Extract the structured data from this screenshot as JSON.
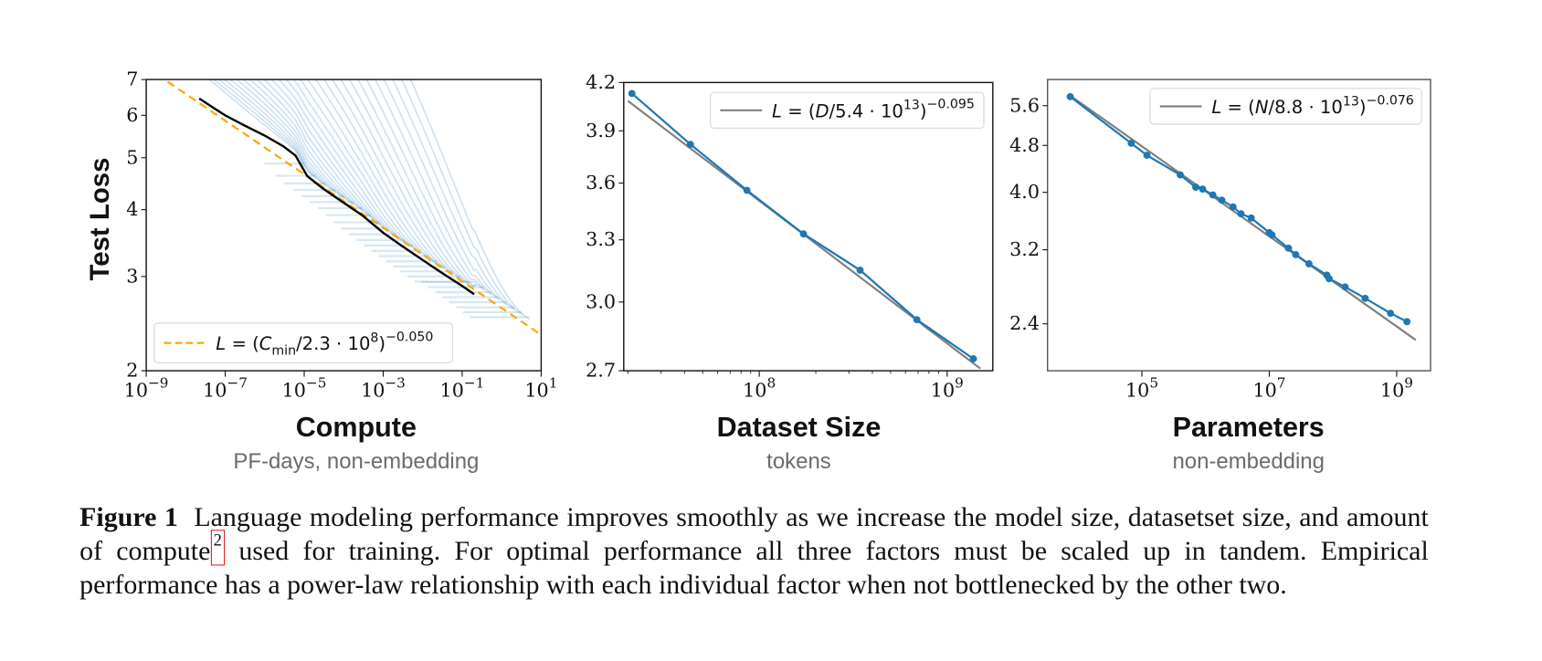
{
  "figure": {
    "label": "Figure 1",
    "caption_before_ref": "Language modeling performance improves smoothly as we increase the model size, datasetset size, and amount of compute",
    "footnote_ref": "2",
    "caption_after_ref": " used for training. For optimal performance all three factors must be scaled up in tandem. Empirical performance has a power-law relationship with each individual factor when not bottlenecked by the other two."
  },
  "colors": {
    "run_curve": "#1f77b4",
    "frontier": "#000000",
    "fit_dashed": "#ffa500",
    "fit_line": "#808080",
    "points": "#1f77b4",
    "footnote_box": "#e02020"
  },
  "chart_data": [
    {
      "type": "line",
      "id": "compute",
      "title": "",
      "xlabel": "Compute",
      "xlabel_sub": "PF-days, non-embedding",
      "ylabel": "Test Loss",
      "xscale": "log",
      "yscale": "log",
      "xlim": [
        1e-09,
        10
      ],
      "ylim": [
        2,
        7
      ],
      "grid": false,
      "x_ticks": [
        {
          "value": 1e-09,
          "base": "10",
          "exp": "−9"
        },
        {
          "value": 1e-07,
          "base": "10",
          "exp": "−7"
        },
        {
          "value": 1e-05,
          "base": "10",
          "exp": "−5"
        },
        {
          "value": 0.001,
          "base": "10",
          "exp": "−3"
        },
        {
          "value": 0.1,
          "base": "10",
          "exp": "−1"
        },
        {
          "value": 10,
          "base": "10",
          "exp": "1"
        }
      ],
      "y_ticks": [
        {
          "value": 2,
          "label": "2"
        },
        {
          "value": 3,
          "label": "3"
        },
        {
          "value": 4,
          "label": "4"
        },
        {
          "value": 5,
          "label": "5"
        },
        {
          "value": 6,
          "label": "6"
        },
        {
          "value": 7,
          "label": "7"
        }
      ],
      "legend": {
        "placement": "lower-left",
        "entries": [
          {
            "style": "dashed",
            "color": "#ffa500",
            "text_main": "L = (C",
            "text_sub": "min",
            "text_mid": "/2.3 · 10",
            "text_sup1": "8",
            "text_close": ")",
            "text_sup2": "−0.050"
          }
        ]
      },
      "fit": {
        "name": "L = (C_min/2.3·10^8)^−0.050",
        "scale": 230000000.0,
        "exponent": -0.05,
        "x_range": [
          1e-09,
          10
        ]
      },
      "frontier": {
        "name": "compute-efficient frontier",
        "x": [
          2.2e-08,
          5e-08,
          1e-07,
          3e-07,
          1e-06,
          3e-06,
          6e-06,
          1.2e-05,
          3e-05,
          0.0001,
          0.0003,
          0.001,
          0.003,
          0.01,
          0.03,
          0.1,
          0.2
        ],
        "y": [
          6.45,
          6.2,
          6.0,
          5.75,
          5.5,
          5.25,
          5.05,
          4.62,
          4.38,
          4.12,
          3.9,
          3.62,
          3.42,
          3.22,
          3.05,
          2.88,
          2.78
        ]
      },
      "runs": {
        "name": "training runs",
        "count": 28,
        "start_x_range": [
          5e-09,
          0.003
        ],
        "end_x_range": [
          1e-05,
          5
        ],
        "start_y": 7,
        "note": "Individual learning curves descend steeply from the top boundary then merge onto the frontier, with horizontal jitter segments."
      }
    },
    {
      "type": "line",
      "id": "dataset",
      "title": "",
      "xlabel": "Dataset Size",
      "xlabel_sub": "tokens",
      "ylabel": "",
      "xscale": "log",
      "yscale": "log",
      "xlim": [
        19000000.0,
        1750000000.0
      ],
      "ylim": [
        2.7,
        4.2
      ],
      "grid": false,
      "x_ticks": [
        {
          "value": 100000000.0,
          "base": "10",
          "exp": "8"
        },
        {
          "value": 1000000000.0,
          "base": "10",
          "exp": "9"
        }
      ],
      "y_ticks": [
        {
          "value": 2.7,
          "label": "2.7"
        },
        {
          "value": 3.0,
          "label": "3.0"
        },
        {
          "value": 3.3,
          "label": "3.3"
        },
        {
          "value": 3.6,
          "label": "3.6"
        },
        {
          "value": 3.9,
          "label": "3.9"
        },
        {
          "value": 4.2,
          "label": "4.2"
        }
      ],
      "legend": {
        "placement": "upper-right",
        "entries": [
          {
            "style": "solid",
            "color": "#808080",
            "text_main": "L = (D/5.4 · 10",
            "text_sup1": "13",
            "text_close": ")",
            "text_sup2": "−0.095"
          }
        ]
      },
      "fit": {
        "name": "L = (D/5.4·10^13)^−0.095",
        "scale": 54000000000000.0,
        "exponent": -0.095,
        "x_range": [
          20000000.0,
          1500000000.0
        ]
      },
      "series": [
        {
          "name": "observed",
          "x": [
            21000000.0,
            43000000.0,
            86000000.0,
            172000000.0,
            344000000.0,
            690000000.0,
            1380000000.0
          ],
          "y": [
            4.13,
            3.82,
            3.56,
            3.33,
            3.15,
            2.92,
            2.75
          ]
        }
      ]
    },
    {
      "type": "line",
      "id": "parameters",
      "title": "",
      "xlabel": "Parameters",
      "xlabel_sub": "non-embedding",
      "ylabel": "",
      "xscale": "log",
      "yscale": "log",
      "xlim": [
        3300.0,
        3400000000.0
      ],
      "ylim": [
        2.0,
        6.2
      ],
      "grid": false,
      "x_ticks": [
        {
          "value": 100000.0,
          "base": "10",
          "exp": "5"
        },
        {
          "value": 10000000.0,
          "base": "10",
          "exp": "7"
        },
        {
          "value": 1000000000.0,
          "base": "10",
          "exp": "9"
        }
      ],
      "y_ticks": [
        {
          "value": 2.4,
          "label": "2.4"
        },
        {
          "value": 3.2,
          "label": "3.2"
        },
        {
          "value": 4.0,
          "label": "4.0"
        },
        {
          "value": 4.8,
          "label": "4.8"
        },
        {
          "value": 5.6,
          "label": "5.6"
        }
      ],
      "legend": {
        "placement": "upper-right",
        "entries": [
          {
            "style": "solid",
            "color": "#808080",
            "text_main": "L = (N/8.8 · 10",
            "text_sup1": "13",
            "text_close": ")",
            "text_sup2": "−0.076"
          }
        ]
      },
      "fit": {
        "name": "L = (N/8.8·10^13)^−0.076",
        "scale": 88000000000000.0,
        "exponent": -0.076,
        "x_range": [
          7000.0,
          2000000000.0
        ]
      },
      "series": [
        {
          "name": "observed",
          "x": [
            7500.0,
            68000.0,
            120000.0,
            400000.0,
            700000.0,
            900000.0,
            1300000.0,
            1800000.0,
            2700000.0,
            3600000.0,
            5200000.0,
            10000000.0,
            11000000.0,
            20000000.0,
            26000000.0,
            42000000.0,
            80000000.0,
            87000000.0,
            155000000.0,
            320000000.0,
            800000000.0,
            1450000000.0
          ],
          "y": [
            5.8,
            4.84,
            4.62,
            4.28,
            4.08,
            4.05,
            3.96,
            3.88,
            3.78,
            3.68,
            3.62,
            3.42,
            3.39,
            3.22,
            3.14,
            3.03,
            2.9,
            2.86,
            2.77,
            2.65,
            2.5,
            2.42
          ]
        }
      ]
    }
  ]
}
